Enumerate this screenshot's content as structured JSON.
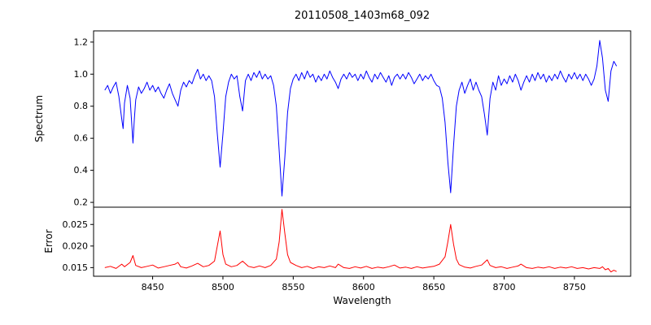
{
  "title": "20110508_1403m68_092",
  "xaxis": {
    "label": "Wavelength",
    "ticks": [
      8450,
      8500,
      8550,
      8600,
      8650,
      8700,
      8750
    ],
    "ticklabels": [
      "8450",
      "8500",
      "8550",
      "8600",
      "8650",
      "8700",
      "8750"
    ]
  },
  "chart_data": [
    {
      "type": "line",
      "name": "spectrum",
      "ylabel": "Spectrum",
      "color": "#0000ff",
      "line_width": 1,
      "xlim": [
        8408,
        8790
      ],
      "ylim": [
        0.17,
        1.27
      ],
      "yticks": [
        0.2,
        0.4,
        0.6,
        0.8,
        1.0,
        1.2
      ],
      "yticklabels": [
        "0.2",
        "0.4",
        "0.6",
        "0.8",
        "1.0",
        "1.2"
      ],
      "grid": false,
      "legend": null,
      "points": [
        [
          8416,
          0.9
        ],
        [
          8418,
          0.93
        ],
        [
          8420,
          0.88
        ],
        [
          8422,
          0.92
        ],
        [
          8424,
          0.95
        ],
        [
          8426,
          0.86
        ],
        [
          8428,
          0.72
        ],
        [
          8429,
          0.66
        ],
        [
          8430,
          0.82
        ],
        [
          8432,
          0.93
        ],
        [
          8434,
          0.85
        ],
        [
          8436,
          0.57
        ],
        [
          8437,
          0.72
        ],
        [
          8438,
          0.84
        ],
        [
          8440,
          0.92
        ],
        [
          8442,
          0.88
        ],
        [
          8444,
          0.91
        ],
        [
          8446,
          0.95
        ],
        [
          8448,
          0.9
        ],
        [
          8450,
          0.93
        ],
        [
          8452,
          0.89
        ],
        [
          8454,
          0.92
        ],
        [
          8456,
          0.88
        ],
        [
          8458,
          0.85
        ],
        [
          8460,
          0.9
        ],
        [
          8462,
          0.94
        ],
        [
          8464,
          0.88
        ],
        [
          8466,
          0.84
        ],
        [
          8468,
          0.8
        ],
        [
          8470,
          0.9
        ],
        [
          8472,
          0.95
        ],
        [
          8474,
          0.92
        ],
        [
          8476,
          0.96
        ],
        [
          8478,
          0.94
        ],
        [
          8480,
          0.99
        ],
        [
          8482,
          1.03
        ],
        [
          8484,
          0.97
        ],
        [
          8486,
          1.0
        ],
        [
          8488,
          0.96
        ],
        [
          8490,
          0.99
        ],
        [
          8492,
          0.96
        ],
        [
          8494,
          0.86
        ],
        [
          8496,
          0.63
        ],
        [
          8498,
          0.42
        ],
        [
          8500,
          0.63
        ],
        [
          8502,
          0.86
        ],
        [
          8504,
          0.95
        ],
        [
          8506,
          1.0
        ],
        [
          8508,
          0.97
        ],
        [
          8510,
          0.99
        ],
        [
          8512,
          0.86
        ],
        [
          8514,
          0.77
        ],
        [
          8516,
          0.96
        ],
        [
          8518,
          1.0
        ],
        [
          8520,
          0.96
        ],
        [
          8522,
          1.01
        ],
        [
          8524,
          0.98
        ],
        [
          8526,
          1.02
        ],
        [
          8528,
          0.97
        ],
        [
          8530,
          1.0
        ],
        [
          8532,
          0.97
        ],
        [
          8534,
          0.99
        ],
        [
          8536,
          0.93
        ],
        [
          8538,
          0.8
        ],
        [
          8540,
          0.52
        ],
        [
          8542,
          0.24
        ],
        [
          8544,
          0.48
        ],
        [
          8546,
          0.76
        ],
        [
          8548,
          0.91
        ],
        [
          8550,
          0.97
        ],
        [
          8552,
          1.0
        ],
        [
          8554,
          0.96
        ],
        [
          8556,
          1.01
        ],
        [
          8558,
          0.97
        ],
        [
          8560,
          1.02
        ],
        [
          8562,
          0.98
        ],
        [
          8564,
          1.0
        ],
        [
          8566,
          0.95
        ],
        [
          8568,
          0.99
        ],
        [
          8570,
          0.96
        ],
        [
          8572,
          1.0
        ],
        [
          8574,
          0.97
        ],
        [
          8576,
          1.02
        ],
        [
          8578,
          0.98
        ],
        [
          8580,
          0.95
        ],
        [
          8582,
          0.91
        ],
        [
          8584,
          0.97
        ],
        [
          8586,
          1.0
        ],
        [
          8588,
          0.97
        ],
        [
          8590,
          1.01
        ],
        [
          8592,
          0.98
        ],
        [
          8594,
          1.0
        ],
        [
          8596,
          0.96
        ],
        [
          8598,
          1.0
        ],
        [
          8600,
          0.97
        ],
        [
          8602,
          1.02
        ],
        [
          8604,
          0.98
        ],
        [
          8606,
          0.95
        ],
        [
          8608,
          1.0
        ],
        [
          8610,
          0.97
        ],
        [
          8612,
          1.01
        ],
        [
          8614,
          0.98
        ],
        [
          8616,
          0.95
        ],
        [
          8618,
          0.99
        ],
        [
          8620,
          0.93
        ],
        [
          8622,
          0.98
        ],
        [
          8624,
          1.0
        ],
        [
          8626,
          0.97
        ],
        [
          8628,
          1.0
        ],
        [
          8630,
          0.97
        ],
        [
          8632,
          1.01
        ],
        [
          8634,
          0.98
        ],
        [
          8636,
          0.94
        ],
        [
          8638,
          0.97
        ],
        [
          8640,
          1.0
        ],
        [
          8642,
          0.96
        ],
        [
          8644,
          0.99
        ],
        [
          8646,
          0.97
        ],
        [
          8648,
          1.0
        ],
        [
          8650,
          0.96
        ],
        [
          8652,
          0.93
        ],
        [
          8654,
          0.92
        ],
        [
          8656,
          0.85
        ],
        [
          8658,
          0.7
        ],
        [
          8660,
          0.45
        ],
        [
          8662,
          0.26
        ],
        [
          8664,
          0.55
        ],
        [
          8666,
          0.8
        ],
        [
          8668,
          0.9
        ],
        [
          8670,
          0.95
        ],
        [
          8672,
          0.88
        ],
        [
          8674,
          0.93
        ],
        [
          8676,
          0.97
        ],
        [
          8678,
          0.9
        ],
        [
          8680,
          0.95
        ],
        [
          8682,
          0.9
        ],
        [
          8684,
          0.86
        ],
        [
          8686,
          0.75
        ],
        [
          8688,
          0.62
        ],
        [
          8690,
          0.85
        ],
        [
          8692,
          0.95
        ],
        [
          8694,
          0.9
        ],
        [
          8696,
          0.99
        ],
        [
          8698,
          0.93
        ],
        [
          8700,
          0.97
        ],
        [
          8702,
          0.94
        ],
        [
          8704,
          0.99
        ],
        [
          8706,
          0.95
        ],
        [
          8708,
          1.0
        ],
        [
          8710,
          0.96
        ],
        [
          8712,
          0.9
        ],
        [
          8714,
          0.95
        ],
        [
          8716,
          0.99
        ],
        [
          8718,
          0.95
        ],
        [
          8720,
          1.0
        ],
        [
          8722,
          0.96
        ],
        [
          8724,
          1.01
        ],
        [
          8726,
          0.97
        ],
        [
          8728,
          1.0
        ],
        [
          8730,
          0.95
        ],
        [
          8732,
          0.99
        ],
        [
          8734,
          0.96
        ],
        [
          8736,
          1.0
        ],
        [
          8738,
          0.97
        ],
        [
          8740,
          1.02
        ],
        [
          8742,
          0.98
        ],
        [
          8744,
          0.95
        ],
        [
          8746,
          1.0
        ],
        [
          8748,
          0.97
        ],
        [
          8750,
          1.01
        ],
        [
          8752,
          0.97
        ],
        [
          8754,
          1.0
        ],
        [
          8756,
          0.96
        ],
        [
          8758,
          1.0
        ],
        [
          8760,
          0.97
        ],
        [
          8762,
          0.93
        ],
        [
          8764,
          0.97
        ],
        [
          8766,
          1.05
        ],
        [
          8768,
          1.21
        ],
        [
          8770,
          1.1
        ],
        [
          8772,
          0.9
        ],
        [
          8774,
          0.83
        ],
        [
          8776,
          1.02
        ],
        [
          8778,
          1.08
        ],
        [
          8780,
          1.05
        ]
      ]
    },
    {
      "type": "line",
      "name": "error",
      "ylabel": "Error",
      "color": "#ff0000",
      "line_width": 1,
      "xlim": [
        8408,
        8790
      ],
      "ylim": [
        0.013,
        0.029
      ],
      "yticks": [
        0.015,
        0.02,
        0.025
      ],
      "yticklabels": [
        "0.015",
        "0.020",
        "0.025"
      ],
      "grid": false,
      "legend": null,
      "points": [
        [
          8416,
          0.015
        ],
        [
          8420,
          0.0153
        ],
        [
          8424,
          0.0148
        ],
        [
          8428,
          0.0158
        ],
        [
          8430,
          0.0152
        ],
        [
          8434,
          0.0162
        ],
        [
          8436,
          0.0178
        ],
        [
          8438,
          0.0155
        ],
        [
          8442,
          0.015
        ],
        [
          8446,
          0.0153
        ],
        [
          8450,
          0.0156
        ],
        [
          8454,
          0.0149
        ],
        [
          8458,
          0.0152
        ],
        [
          8462,
          0.0155
        ],
        [
          8466,
          0.0158
        ],
        [
          8468,
          0.0162
        ],
        [
          8470,
          0.0152
        ],
        [
          8474,
          0.0149
        ],
        [
          8478,
          0.0154
        ],
        [
          8482,
          0.016
        ],
        [
          8486,
          0.0152
        ],
        [
          8490,
          0.0155
        ],
        [
          8494,
          0.0165
        ],
        [
          8498,
          0.0235
        ],
        [
          8500,
          0.018
        ],
        [
          8502,
          0.0158
        ],
        [
          8506,
          0.0152
        ],
        [
          8510,
          0.0155
        ],
        [
          8514,
          0.0165
        ],
        [
          8518,
          0.0153
        ],
        [
          8522,
          0.015
        ],
        [
          8526,
          0.0154
        ],
        [
          8530,
          0.015
        ],
        [
          8534,
          0.0155
        ],
        [
          8538,
          0.017
        ],
        [
          8540,
          0.021
        ],
        [
          8542,
          0.0285
        ],
        [
          8544,
          0.023
        ],
        [
          8546,
          0.018
        ],
        [
          8548,
          0.0162
        ],
        [
          8552,
          0.0155
        ],
        [
          8556,
          0.015
        ],
        [
          8560,
          0.0153
        ],
        [
          8564,
          0.0148
        ],
        [
          8568,
          0.0152
        ],
        [
          8572,
          0.015
        ],
        [
          8576,
          0.0154
        ],
        [
          8580,
          0.015
        ],
        [
          8582,
          0.0158
        ],
        [
          8586,
          0.015
        ],
        [
          8590,
          0.0148
        ],
        [
          8594,
          0.0152
        ],
        [
          8598,
          0.0149
        ],
        [
          8602,
          0.0153
        ],
        [
          8606,
          0.0148
        ],
        [
          8610,
          0.0151
        ],
        [
          8614,
          0.0149
        ],
        [
          8618,
          0.0152
        ],
        [
          8622,
          0.0156
        ],
        [
          8626,
          0.0149
        ],
        [
          8630,
          0.0151
        ],
        [
          8634,
          0.0148
        ],
        [
          8638,
          0.0152
        ],
        [
          8642,
          0.0149
        ],
        [
          8646,
          0.0151
        ],
        [
          8650,
          0.0153
        ],
        [
          8654,
          0.0158
        ],
        [
          8658,
          0.0175
        ],
        [
          8660,
          0.021
        ],
        [
          8662,
          0.025
        ],
        [
          8664,
          0.0205
        ],
        [
          8666,
          0.017
        ],
        [
          8668,
          0.0157
        ],
        [
          8672,
          0.0151
        ],
        [
          8676,
          0.0149
        ],
        [
          8680,
          0.0153
        ],
        [
          8684,
          0.0156
        ],
        [
          8688,
          0.0168
        ],
        [
          8690,
          0.0155
        ],
        [
          8694,
          0.015
        ],
        [
          8698,
          0.0152
        ],
        [
          8702,
          0.0148
        ],
        [
          8706,
          0.0151
        ],
        [
          8710,
          0.0154
        ],
        [
          8712,
          0.0158
        ],
        [
          8716,
          0.015
        ],
        [
          8720,
          0.0148
        ],
        [
          8724,
          0.0151
        ],
        [
          8728,
          0.0149
        ],
        [
          8732,
          0.0152
        ],
        [
          8736,
          0.0148
        ],
        [
          8740,
          0.0151
        ],
        [
          8744,
          0.0149
        ],
        [
          8748,
          0.0152
        ],
        [
          8752,
          0.0148
        ],
        [
          8756,
          0.015
        ],
        [
          8760,
          0.0147
        ],
        [
          8764,
          0.015
        ],
        [
          8768,
          0.0148
        ],
        [
          8770,
          0.0152
        ],
        [
          8772,
          0.0145
        ],
        [
          8774,
          0.0148
        ],
        [
          8776,
          0.014
        ],
        [
          8778,
          0.0144
        ],
        [
          8780,
          0.0141
        ]
      ]
    }
  ]
}
